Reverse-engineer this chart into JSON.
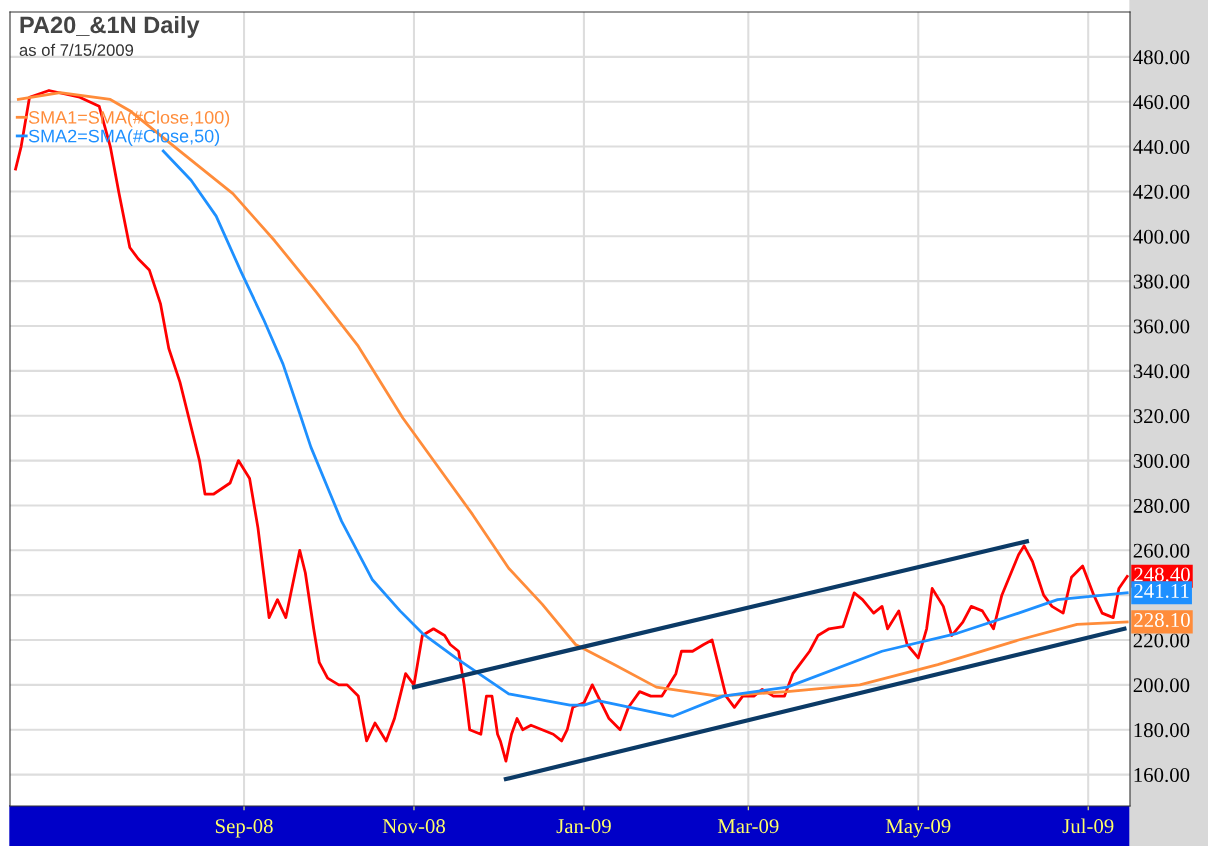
{
  "chart_data": {
    "type": "line",
    "title": "PA20_&1N Daily",
    "subtitle": "as of 7/15/2009",
    "xlim": [
      "2008-06-09",
      "2009-07-16"
    ],
    "ylim": [
      146,
      500
    ],
    "xticks": [
      {
        "value": "2008-09-01",
        "label": "Sep-08"
      },
      {
        "value": "2008-11-01",
        "label": "Nov-08"
      },
      {
        "value": "2009-01-01",
        "label": "Jan-09"
      },
      {
        "value": "2009-03-01",
        "label": "Mar-09"
      },
      {
        "value": "2009-05-01",
        "label": "May-09"
      },
      {
        "value": "2009-07-01",
        "label": "Jul-09"
      }
    ],
    "yticks": [
      {
        "value": 160,
        "label": "160.00"
      },
      {
        "value": 180,
        "label": "180.00"
      },
      {
        "value": 200,
        "label": "200.00"
      },
      {
        "value": 220,
        "label": "220.00"
      },
      {
        "value": 240,
        "label": null
      },
      {
        "value": 260,
        "label": "260.00"
      },
      {
        "value": 280,
        "label": "280.00"
      },
      {
        "value": 300,
        "label": "300.00"
      },
      {
        "value": 320,
        "label": "320.00"
      },
      {
        "value": 340,
        "label": "340.00"
      },
      {
        "value": 360,
        "label": "360.00"
      },
      {
        "value": 380,
        "label": "380.00"
      },
      {
        "value": 400,
        "label": "400.00"
      },
      {
        "value": 420,
        "label": "420.00"
      },
      {
        "value": 440,
        "label": "440.00"
      },
      {
        "value": 460,
        "label": "460.00"
      },
      {
        "value": 480,
        "label": "480.00"
      }
    ],
    "grid": true,
    "legend": "top left",
    "marker": "none",
    "series": [
      {
        "color": "#ff0000",
        "x": [
          "2008-06-11",
          "2008-06-13",
          "2008-06-16",
          "2008-06-23",
          "2008-07-04",
          "2008-07-11",
          "2008-07-15",
          "2008-07-18",
          "2008-07-22",
          "2008-07-25",
          "2008-07-29",
          "2008-08-02",
          "2008-08-05",
          "2008-08-09",
          "2008-08-12",
          "2008-08-16",
          "2008-08-18",
          "2008-08-21",
          "2008-08-27",
          "2008-08-30",
          "2008-09-03",
          "2008-09-06",
          "2008-09-08",
          "2008-09-10",
          "2008-09-13",
          "2008-09-16",
          "2008-09-21",
          "2008-09-23",
          "2008-09-26",
          "2008-09-28",
          "2008-10-01",
          "2008-10-05",
          "2008-10-08",
          "2008-10-12",
          "2008-10-15",
          "2008-10-18",
          "2008-10-22",
          "2008-10-25",
          "2008-10-27",
          "2008-10-29",
          "2008-11-01",
          "2008-11-04",
          "2008-11-08",
          "2008-11-12",
          "2008-11-14",
          "2008-11-17",
          "2008-11-19",
          "2008-11-21",
          "2008-11-25",
          "2008-11-27",
          "2008-11-29",
          "2008-12-01",
          "2008-12-02",
          "2008-12-04",
          "2008-12-06",
          "2008-12-08",
          "2008-12-10",
          "2008-12-13",
          "2008-12-17",
          "2008-12-21",
          "2008-12-24",
          "2008-12-26",
          "2008-12-28",
          "2009-01-01",
          "2009-01-04",
          "2009-01-06",
          "2009-01-10",
          "2009-01-14",
          "2009-01-17",
          "2009-01-21",
          "2009-01-25",
          "2009-01-29",
          "2009-02-03",
          "2009-02-05",
          "2009-02-09",
          "2009-02-13",
          "2009-02-16",
          "2009-02-18",
          "2009-02-21",
          "2009-02-24",
          "2009-02-27",
          "2009-03-03",
          "2009-03-06",
          "2009-03-10",
          "2009-03-14",
          "2009-03-17",
          "2009-03-20",
          "2009-03-23",
          "2009-03-26",
          "2009-03-30",
          "2009-04-04",
          "2009-04-08",
          "2009-04-11",
          "2009-04-15",
          "2009-04-18",
          "2009-04-20",
          "2009-04-24",
          "2009-04-27",
          "2009-05-01",
          "2009-05-04",
          "2009-05-06",
          "2009-05-10",
          "2009-05-13",
          "2009-05-17",
          "2009-05-20",
          "2009-05-24",
          "2009-05-28",
          "2009-05-31",
          "2009-06-04",
          "2009-06-06",
          "2009-06-08",
          "2009-06-11",
          "2009-06-15",
          "2009-06-18",
          "2009-06-22",
          "2009-06-25",
          "2009-06-29",
          "2009-07-03",
          "2009-07-06",
          "2009-07-10",
          "2009-07-12",
          "2009-07-15"
        ],
        "values": [
          430,
          440,
          462,
          465,
          462,
          458,
          440,
          420,
          395,
          390,
          385,
          370,
          350,
          335,
          320,
          300,
          285,
          285,
          290,
          300,
          292,
          270,
          250,
          230,
          238,
          230,
          260,
          250,
          225,
          210,
          203,
          200,
          200,
          195,
          175,
          183,
          175,
          185,
          195,
          205,
          200,
          222,
          225,
          222,
          218,
          215,
          200,
          180,
          178,
          195,
          195,
          178,
          175,
          166,
          178,
          185,
          180,
          182,
          180,
          178,
          175,
          180,
          190,
          192,
          200,
          195,
          185,
          180,
          190,
          197,
          195,
          195,
          205,
          215,
          215,
          218,
          220,
          210,
          195,
          190,
          195,
          195,
          198,
          195,
          195,
          205,
          210,
          215,
          222,
          225,
          226,
          241,
          238,
          232,
          235,
          225,
          233,
          218,
          212,
          225,
          243,
          235,
          222,
          228,
          235,
          233,
          225,
          240,
          252,
          258,
          262,
          255,
          240,
          235,
          232,
          248,
          253,
          240,
          232,
          230,
          243,
          248.4
        ],
        "value_labels": [
          null,
          null,
          null,
          null,
          null,
          null,
          null,
          null,
          null,
          null,
          null,
          null,
          null,
          null,
          null,
          null,
          null,
          null,
          null,
          null,
          null,
          null,
          null,
          null,
          null,
          null,
          null,
          null,
          null,
          null,
          null,
          null,
          null,
          null,
          null,
          null,
          null,
          null,
          null,
          null,
          null,
          null,
          null,
          null,
          null,
          null,
          null,
          null,
          null,
          null,
          null,
          null,
          null,
          null,
          null,
          null,
          null,
          null,
          null,
          null,
          null,
          null,
          null,
          null,
          null,
          null,
          null,
          null,
          null,
          null,
          null,
          null,
          null,
          null,
          null,
          null,
          null,
          null,
          null,
          null,
          null,
          null,
          null,
          null,
          null,
          null,
          null,
          null,
          null,
          null,
          null,
          null,
          null,
          null,
          null,
          null,
          null,
          null,
          null,
          null,
          null,
          null,
          null,
          null,
          null,
          null,
          null,
          null,
          null,
          null,
          null,
          null,
          null,
          null,
          null,
          null,
          null,
          null,
          null,
          null,
          null,
          "248.40"
        ]
      },
      {
        "name": "SMA1=SMA(#Close,100)",
        "color": "#ff8c3a",
        "x": [
          "2008-06-12",
          "2008-06-27",
          "2008-07-15",
          "2008-07-22",
          "2008-08-10",
          "2008-08-28",
          "2008-09-12",
          "2008-09-27",
          "2008-10-12",
          "2008-10-28",
          "2008-11-22",
          "2008-12-05",
          "2008-12-17",
          "2008-12-29",
          "2009-01-12",
          "2009-01-27",
          "2009-02-18",
          "2009-03-15",
          "2009-04-10",
          "2009-05-08",
          "2009-06-06",
          "2009-06-27",
          "2009-07-15"
        ],
        "values": [
          461,
          464,
          461,
          456,
          437,
          419,
          398,
          375,
          351,
          319,
          276,
          252,
          236,
          218,
          209,
          199,
          195,
          197,
          200,
          209,
          220,
          227,
          228.1
        ],
        "value_labels": [
          null,
          null,
          null,
          null,
          null,
          null,
          null,
          null,
          null,
          null,
          null,
          null,
          null,
          null,
          null,
          null,
          null,
          null,
          null,
          null,
          null,
          null,
          "228.10"
        ]
      },
      {
        "name": "SMA2=SMA(#Close,50)",
        "color": "#1e90ff",
        "x": [
          "2008-08-03",
          "2008-08-13",
          "2008-08-22",
          "2008-08-31",
          "2008-09-08",
          "2008-09-15",
          "2008-09-21",
          "2008-09-25",
          "2008-10-06",
          "2008-10-17",
          "2008-10-27",
          "2008-11-04",
          "2008-11-16",
          "2008-12-05",
          "2008-12-27",
          "2009-01-01",
          "2009-01-06",
          "2009-02-02",
          "2009-02-20",
          "2009-03-15",
          "2009-04-18",
          "2009-05-15",
          "2009-06-06",
          "2009-06-20",
          "2009-07-15"
        ],
        "values": [
          438,
          425,
          409,
          384,
          363,
          343,
          321,
          306,
          273,
          247,
          233,
          223,
          212,
          196,
          191,
          191,
          193,
          186,
          195,
          199,
          215,
          223,
          232,
          238,
          241.11
        ],
        "value_labels": [
          null,
          null,
          null,
          null,
          null,
          null,
          null,
          null,
          null,
          null,
          null,
          null,
          null,
          null,
          null,
          null,
          null,
          null,
          null,
          null,
          null,
          null,
          null,
          null,
          "241.11"
        ]
      },
      {
        "color": "#0b3a66",
        "x": [
          "2008-11-01",
          "2009-06-09"
        ],
        "values": [
          199,
          264
        ]
      },
      {
        "color": "#0b3a66",
        "x": [
          "2008-12-04",
          "2009-07-14"
        ],
        "values": [
          158,
          225
        ]
      }
    ]
  }
}
